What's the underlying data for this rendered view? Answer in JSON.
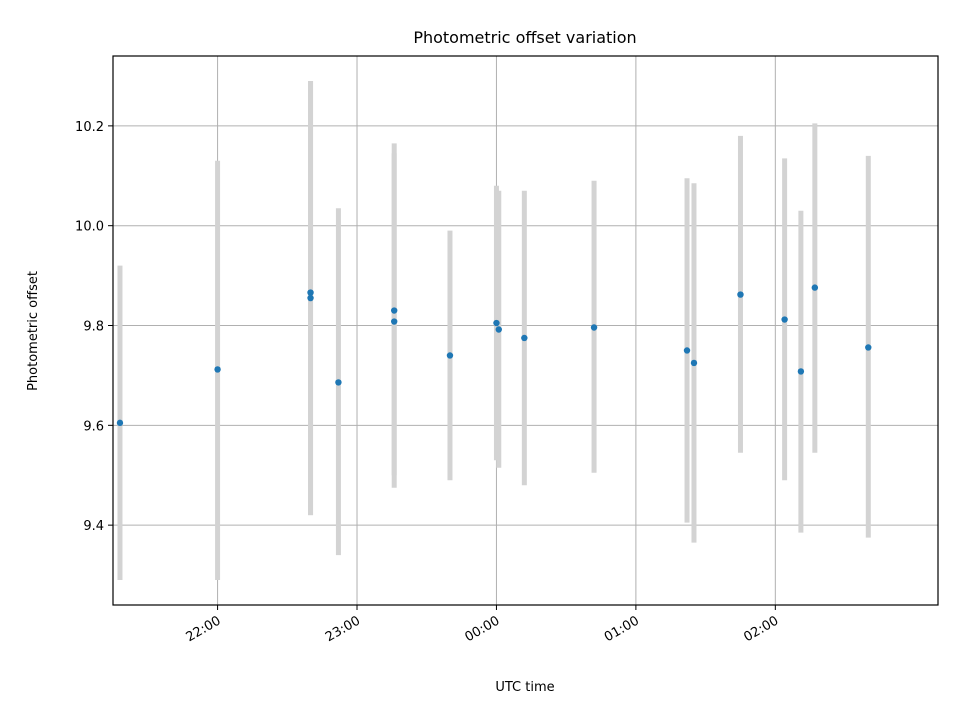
{
  "chart_data": {
    "type": "scatter",
    "title": "Photometric offset variation",
    "xlabel": "UTC time",
    "ylabel": "Photometric offset",
    "x_ticks": [
      "22:00",
      "23:00",
      "00:00",
      "01:00",
      "02:00"
    ],
    "y_ticks": [
      "9.4",
      "9.6",
      "9.8",
      "10.0",
      "10.2"
    ],
    "xlim": [
      "21:15",
      "03:10"
    ],
    "ylim": [
      9.24,
      10.34
    ],
    "grid": true,
    "point_color": "#1f77b4",
    "errorbar_color": "#d3d3d3",
    "points": [
      {
        "x": "21:18",
        "y": 9.605,
        "ylo": 9.29,
        "yhi": 9.92
      },
      {
        "x": "22:00",
        "y": 9.712,
        "ylo": 9.29,
        "yhi": 10.13
      },
      {
        "x": "22:40",
        "y": 9.866,
        "ylo": 9.42,
        "yhi": 10.29
      },
      {
        "x": "22:40",
        "y": 9.855,
        "ylo": 9.42,
        "yhi": 10.29
      },
      {
        "x": "22:52",
        "y": 9.686,
        "ylo": 9.34,
        "yhi": 10.035
      },
      {
        "x": "23:16",
        "y": 9.83,
        "ylo": 9.5,
        "yhi": 10.165
      },
      {
        "x": "23:16",
        "y": 9.808,
        "ylo": 9.475,
        "yhi": 10.145
      },
      {
        "x": "23:40",
        "y": 9.74,
        "ylo": 9.49,
        "yhi": 9.99
      },
      {
        "x": "00:00",
        "y": 9.805,
        "ylo": 9.53,
        "yhi": 10.08
      },
      {
        "x": "00:01",
        "y": 9.792,
        "ylo": 9.515,
        "yhi": 10.07
      },
      {
        "x": "00:12",
        "y": 9.775,
        "ylo": 9.48,
        "yhi": 10.07
      },
      {
        "x": "00:42",
        "y": 9.796,
        "ylo": 9.505,
        "yhi": 10.09
      },
      {
        "x": "01:22",
        "y": 9.75,
        "ylo": 9.405,
        "yhi": 10.095
      },
      {
        "x": "01:25",
        "y": 9.725,
        "ylo": 9.365,
        "yhi": 10.085
      },
      {
        "x": "01:45",
        "y": 9.862,
        "ylo": 9.545,
        "yhi": 10.18
      },
      {
        "x": "02:04",
        "y": 9.812,
        "ylo": 9.49,
        "yhi": 10.135
      },
      {
        "x": "02:11",
        "y": 9.708,
        "ylo": 9.385,
        "yhi": 10.03
      },
      {
        "x": "02:17",
        "y": 9.876,
        "ylo": 9.545,
        "yhi": 10.205
      },
      {
        "x": "02:40",
        "y": 9.756,
        "ylo": 9.375,
        "yhi": 10.14
      }
    ]
  }
}
